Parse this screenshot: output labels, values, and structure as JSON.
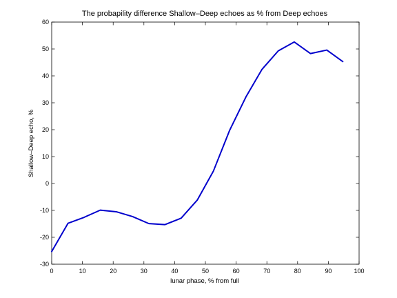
{
  "chart_data": {
    "type": "line",
    "title": "The probapility difference Shallow–Deep echoes as % from Deep echoes",
    "xlabel": "lunar phase, % from full",
    "ylabel": "Shallow–Deep echo, %",
    "xlim": [
      0,
      100
    ],
    "ylim": [
      -30,
      60
    ],
    "xticks": [
      0,
      10,
      20,
      30,
      40,
      50,
      60,
      70,
      80,
      90,
      100
    ],
    "yticks": [
      -30,
      -20,
      -10,
      0,
      10,
      20,
      30,
      40,
      50,
      60
    ],
    "grid": false,
    "series": [
      {
        "color": "#0000cc",
        "x": [
          0,
          5.3,
          10.5,
          15.8,
          21,
          26.3,
          31.6,
          36.8,
          42.1,
          47.4,
          52.6,
          57.9,
          63.2,
          68.4,
          73.7,
          78.9,
          84.2,
          89.5,
          94.7
        ],
        "y": [
          -25.3,
          -14.8,
          -12.6,
          -9.9,
          -10.5,
          -12.3,
          -14.9,
          -15.3,
          -12.9,
          -6.1,
          4.6,
          19.8,
          32.2,
          42.4,
          49.3,
          52.6,
          48.3,
          49.6,
          45.3
        ]
      }
    ]
  }
}
